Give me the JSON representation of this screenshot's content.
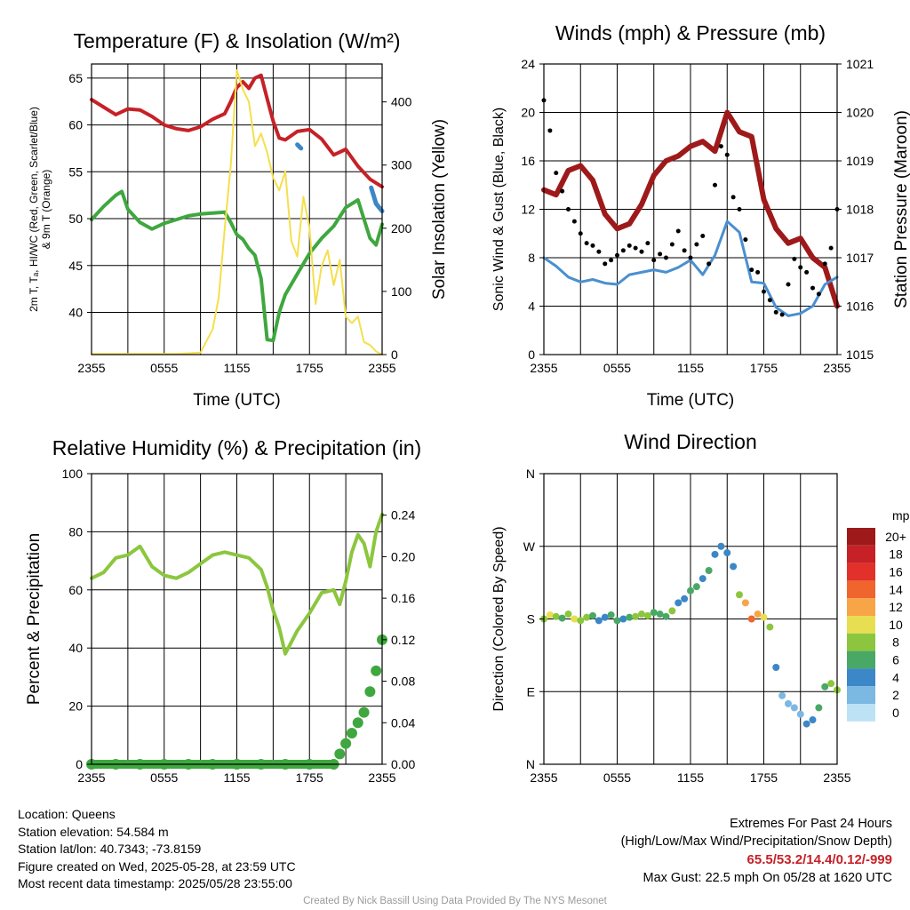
{
  "chart_data": [
    {
      "type": "line",
      "title": "Temperature (F) & Insolation (W/m²)",
      "xlabel": "Time (UTC)",
      "ylabel": "2m T, Tₐ, HI/WC (Red, Green, Scarlet/Blue) & 9m T (Orange)",
      "ylabel_lines": [
        "2m T, Tₐ, HI/WC (Red, Green, Scarlet/Blue)",
        "& 9m T (Orange)"
      ],
      "y2label": "Solar Insolation (Yellow)",
      "ylim": [
        35.5,
        66.5
      ],
      "y2lim": [
        0,
        460
      ],
      "x_ticks": [
        "2355",
        "0555",
        "1155",
        "1755",
        "2355"
      ],
      "y_ticks": [
        40,
        45,
        50,
        55,
        60,
        65
      ],
      "y2_ticks": [
        0,
        100,
        200,
        300,
        400
      ],
      "grid": true,
      "x_hours": [
        0,
        24
      ],
      "series": [
        {
          "color": "#c62127",
          "x": [
            0,
            1,
            2,
            3,
            4,
            5,
            6,
            7,
            8,
            9,
            10,
            11,
            11.5,
            12,
            12.5,
            13,
            13.5,
            14,
            14.5,
            15,
            15.5,
            16,
            17,
            18,
            19,
            20,
            21,
            22,
            23,
            24
          ],
          "y": [
            62.7,
            61.9,
            61.1,
            61.7,
            61.6,
            60.9,
            60.0,
            59.6,
            59.4,
            59.8,
            60.6,
            61.2,
            62.5,
            64.0,
            64.6,
            63.9,
            65.0,
            65.3,
            62.8,
            60.4,
            58.6,
            58.4,
            59.3,
            59.5,
            58.5,
            56.8,
            57.4,
            55.6,
            54.2,
            53.4
          ],
          "width": 4
        },
        {
          "color": "#3fa73f",
          "x": [
            0,
            1,
            2,
            2.5,
            3,
            4,
            5,
            6,
            7,
            8,
            9,
            10,
            11,
            11.5,
            12,
            12.5,
            13,
            13.5,
            14,
            14.5,
            15,
            15.5,
            16,
            17,
            18,
            19,
            20,
            21,
            22,
            23,
            23.5,
            24
          ],
          "y": [
            49.9,
            51.3,
            52.5,
            52.9,
            51.0,
            49.6,
            48.9,
            49.5,
            49.9,
            50.3,
            50.5,
            50.6,
            50.7,
            49.6,
            48.3,
            47.8,
            46.8,
            46.1,
            43.6,
            37.1,
            37.0,
            40.0,
            41.9,
            44.1,
            46.3,
            47.9,
            49.2,
            51.2,
            52.0,
            47.9,
            47.2,
            49.4
          ],
          "width": 4
        },
        {
          "color": "#f5df4d",
          "y_axis": "right",
          "x": [
            0,
            7,
            9,
            10,
            10.5,
            11,
            11.5,
            12,
            12.5,
            13,
            13.5,
            14,
            14.5,
            15,
            15.5,
            16,
            16.5,
            17,
            17.5,
            18,
            18.5,
            19,
            19.5,
            20,
            20.5,
            21,
            21.5,
            22,
            22.5,
            23,
            23.5,
            24
          ],
          "y": [
            1,
            1,
            3,
            40,
            90,
            200,
            300,
            450,
            420,
            400,
            330,
            350,
            320,
            280,
            260,
            290,
            180,
            155,
            250,
            200,
            80,
            140,
            165,
            110,
            150,
            60,
            50,
            60,
            20,
            15,
            5,
            0
          ],
          "width": 2
        }
      ],
      "series_short": [
        {
          "color": "#3b87c7",
          "x": [
            17.0,
            17.3
          ],
          "y": [
            57.9,
            57.5
          ]
        },
        {
          "color": "#3b87c7",
          "x": [
            23.1,
            23.5,
            24.0
          ],
          "y": [
            53.3,
            51.6,
            50.8
          ]
        }
      ]
    },
    {
      "type": "line",
      "title": "Winds (mph) & Pressure (mb)",
      "xlabel": "Time (UTC)",
      "ylabel": "Sonic Wind & Gust (Blue, Black)",
      "y2label": "Station Pressure (Maroon)",
      "ylim": [
        0,
        24
      ],
      "y2lim": [
        1015,
        1021
      ],
      "x_ticks": [
        "2355",
        "0555",
        "1155",
        "1755",
        "2355"
      ],
      "y_ticks": [
        0,
        4,
        8,
        12,
        16,
        20,
        24
      ],
      "y2_ticks": [
        1015,
        1016,
        1017,
        1018,
        1019,
        1020,
        1021
      ],
      "grid": true,
      "series": [
        {
          "color": "#9e1a1a",
          "y_axis": "right",
          "x": [
            0,
            1,
            2,
            3,
            4,
            5,
            6,
            7,
            8,
            9,
            10,
            11,
            12,
            13,
            14,
            15,
            16,
            17,
            18,
            19,
            20,
            21,
            22,
            23,
            24
          ],
          "y": [
            1018.4,
            1018.3,
            1018.8,
            1018.9,
            1018.6,
            1017.9,
            1017.6,
            1017.7,
            1018.1,
            1018.7,
            1019.0,
            1019.1,
            1019.3,
            1019.4,
            1019.2,
            1020.0,
            1019.6,
            1019.5,
            1018.2,
            1017.6,
            1017.3,
            1017.4,
            1017.0,
            1016.8,
            1016.0
          ],
          "width": 6
        },
        {
          "color": "#4a8fd0",
          "x": [
            0,
            1,
            2,
            3,
            4,
            5,
            6,
            7,
            8,
            9,
            10,
            11,
            12,
            13,
            14,
            15,
            16,
            17,
            18,
            19,
            20,
            21,
            22,
            23,
            24
          ],
          "y": [
            8.0,
            7.3,
            6.4,
            6.0,
            6.2,
            5.9,
            5.8,
            6.6,
            6.8,
            7.0,
            6.8,
            7.2,
            7.8,
            6.6,
            8.2,
            11.0,
            10.1,
            6.0,
            5.9,
            3.9,
            3.2,
            3.4,
            4.0,
            5.8,
            6.4
          ],
          "width": 3
        },
        {
          "color": "#000000",
          "kind": "scatter",
          "x": [
            0,
            0.5,
            1,
            1.5,
            2,
            2.5,
            3,
            3.5,
            4,
            4.5,
            5,
            5.5,
            6,
            6.5,
            7,
            7.5,
            8,
            8.5,
            9,
            9.5,
            10,
            10.5,
            11,
            11.5,
            12,
            12.5,
            13,
            13.5,
            14,
            14.5,
            15,
            15.5,
            16,
            16.5,
            17,
            17.5,
            18,
            18.5,
            19,
            19.5,
            20,
            20.5,
            21,
            21.5,
            22,
            22.5,
            23,
            23.5,
            24
          ],
          "y": [
            21,
            18.5,
            15,
            13.5,
            12,
            11,
            10,
            9.2,
            9,
            8.5,
            7.5,
            7.8,
            8.2,
            8.6,
            9,
            8.8,
            8.5,
            9.2,
            7.8,
            8.3,
            8.0,
            9.1,
            10.2,
            8.6,
            8.0,
            9.1,
            9.8,
            7.5,
            14,
            17.2,
            16.5,
            13,
            12,
            9.5,
            7,
            6.8,
            5.2,
            4.5,
            3.5,
            3.3,
            5.8,
            7.9,
            7.2,
            6.8,
            5.5,
            5,
            7.5,
            8.8,
            12
          ],
          "width": 0
        }
      ]
    },
    {
      "type": "line",
      "title": "Relative Humidity (%) & Precipitation (in)",
      "ylabel": "Percent & Precipitation",
      "ylim": [
        0,
        100
      ],
      "y2lim": [
        0,
        0.28
      ],
      "x_ticks": [
        "2355",
        "0555",
        "1155",
        "1755",
        "2355"
      ],
      "y_ticks": [
        0,
        20,
        40,
        60,
        80,
        100
      ],
      "y2_ticks": [
        "0.00",
        "0.04",
        "0.08",
        "0.12",
        "0.16",
        "0.20",
        "0.24"
      ],
      "grid": true,
      "series": [
        {
          "color": "#8cc63e",
          "x": [
            0,
            1,
            2,
            3,
            4,
            5,
            6,
            7,
            8,
            9,
            10,
            11,
            12,
            13,
            14,
            14.5,
            15,
            15.5,
            16,
            17,
            18,
            19,
            20,
            20.5,
            21,
            21.5,
            22,
            22.5,
            23,
            23.5,
            24
          ],
          "y": [
            64,
            66,
            71,
            72,
            75,
            68,
            65,
            64,
            66,
            69,
            72,
            73,
            72,
            71,
            67,
            61,
            53,
            47,
            38,
            46,
            52,
            59,
            60,
            55,
            63,
            73,
            79,
            76,
            68,
            80,
            86
          ],
          "width": 4
        },
        {
          "color": "#3fa73f",
          "y_axis": "right",
          "kind": "steps",
          "x": [
            0,
            2,
            4,
            6,
            8,
            10,
            12,
            14,
            16,
            18,
            20,
            20.5,
            21,
            21.5,
            22,
            22.5,
            23,
            23.5,
            24
          ],
          "y": [
            0,
            0,
            0,
            0,
            0,
            0,
            0,
            0,
            0,
            0,
            0,
            0.01,
            0.02,
            0.03,
            0.04,
            0.05,
            0.07,
            0.09,
            0.12
          ],
          "width": 0
        }
      ]
    },
    {
      "type": "scatter",
      "title": "Wind Direction",
      "ylabel": "Direction (Colored By Speed)",
      "ylim": [
        0,
        360
      ],
      "x_ticks": [
        "2355",
        "0555",
        "1155",
        "1755",
        "2355"
      ],
      "y_ticks": [
        "N",
        "E",
        "S",
        "W",
        "N"
      ],
      "grid": true,
      "series": [
        {
          "color": "#3fa73f",
          "kind": "dirscatter",
          "x": [
            0,
            0.5,
            1,
            1.5,
            2,
            2.5,
            3,
            3.5,
            4,
            4.5,
            5,
            5.5,
            6,
            6.5,
            7,
            7.5,
            8,
            8.5,
            9,
            9.5,
            10,
            10.5,
            11,
            11.5,
            12,
            12.5,
            13,
            13.5,
            14,
            14.5,
            15,
            15.5,
            16,
            16.5,
            17,
            17.5,
            18,
            18.5,
            19,
            19.5,
            20,
            20.5,
            21,
            21.5,
            22,
            22.5,
            23,
            23.5,
            24
          ],
          "y": [
            180,
            185,
            183,
            181,
            186,
            180,
            178,
            182,
            184,
            178,
            182,
            185,
            178,
            180,
            182,
            183,
            186,
            184,
            188,
            186,
            183,
            190,
            200,
            205,
            215,
            220,
            230,
            240,
            260,
            270,
            262,
            245,
            210,
            200,
            180,
            186,
            182,
            170,
            120,
            85,
            75,
            70,
            62,
            50,
            55,
            70,
            96,
            100,
            92
          ],
          "speed": [
            8,
            10,
            7,
            6,
            8,
            9,
            7,
            7,
            5,
            3,
            4,
            5,
            5,
            4,
            6,
            7,
            7,
            8,
            6,
            5,
            6,
            7,
            4,
            3,
            6,
            5,
            4,
            5,
            4,
            3,
            4,
            4,
            7,
            12,
            13,
            12,
            10,
            7,
            3,
            1,
            2,
            2,
            1,
            3,
            4,
            6,
            6,
            7,
            8
          ],
          "width": 0
        }
      ],
      "colorbar": {
        "unit": "mph",
        "labels": [
          "20+",
          "18",
          "16",
          "14",
          "12",
          "10",
          "8",
          "6",
          "4",
          "2",
          "0"
        ],
        "colors": [
          "#9e1a1a",
          "#c62127",
          "#e2312a",
          "#f0642e",
          "#f7a546",
          "#e8de52",
          "#8cc63e",
          "#4aa866",
          "#3b87c7",
          "#7bb8e2",
          "#bde2f5"
        ]
      }
    }
  ],
  "info": {
    "location": "Location: Queens",
    "elevation": "Station elevation: 54.584 m",
    "latlon": "Station lat/lon: 40.7343; -73.8159",
    "created": "Figure created on Wed, 2025-05-28, at 23:59 UTC",
    "recent": "Most recent data timestamp: 2025/05/28 23:55:00"
  },
  "extremes": {
    "heading": "Extremes For Past 24 Hours",
    "legend": "(High/Low/Max Wind/Precipitation/Snow Depth)",
    "values": "65.5/53.2/14.4/0.12/-999",
    "gust": "Max Gust: 22.5 mph On 05/28 at 1620 UTC"
  },
  "credit": "Created By Nick Bassill Using Data Provided By The NYS Mesonet"
}
